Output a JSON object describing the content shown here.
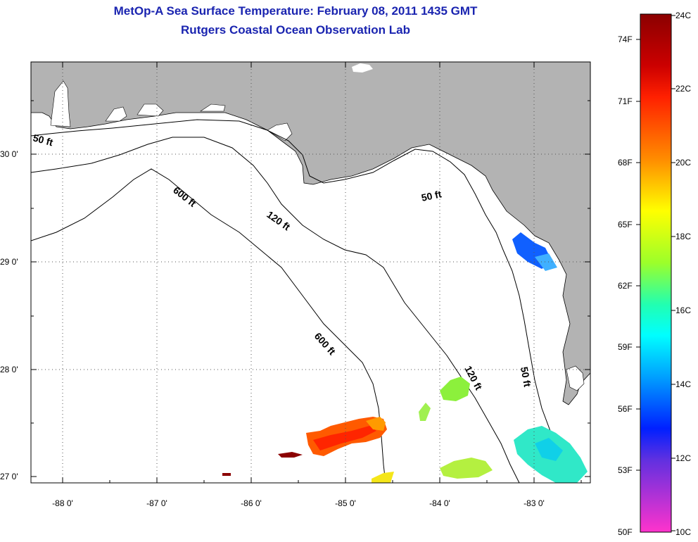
{
  "header": {
    "title": "MetOp-A Sea Surface Temperature:  February 08, 2011 1435 GMT",
    "subtitle": "Rutgers Coastal Ocean Observation Lab"
  },
  "map": {
    "land_color": "#b3b3b3",
    "water_color": "#ffffff",
    "latitude_labels": [
      "30 0'",
      "29 0'",
      "28 0'",
      "27 0'"
    ],
    "longitude_labels": [
      "-88 0'",
      "-87 0'",
      "-86 0'",
      "-85 0'",
      "-84 0'",
      "-83 0'"
    ],
    "contours": {
      "c50_west": "50 ft",
      "c600_north": "600 ft",
      "c120_north": "120 ft",
      "c50_east": "50 ft",
      "c600_south": "600 ft",
      "c120_south": "120 ft",
      "c50_south": "50 ft"
    }
  },
  "colorbar": {
    "fahrenheit_labels": [
      "74F",
      "71F",
      "68F",
      "65F",
      "62F",
      "59F",
      "56F",
      "53F",
      "50F"
    ],
    "celsius_labels": [
      "24C",
      "22C",
      "20C",
      "18C",
      "16C",
      "14C",
      "12C",
      "10C"
    ],
    "colors": [
      "#8b0000",
      "#ff0000",
      "#ff8c00",
      "#ffff00",
      "#7fff00",
      "#00ffff",
      "#0080ff",
      "#0000ff",
      "#8a2be2",
      "#ff33cc"
    ]
  }
}
